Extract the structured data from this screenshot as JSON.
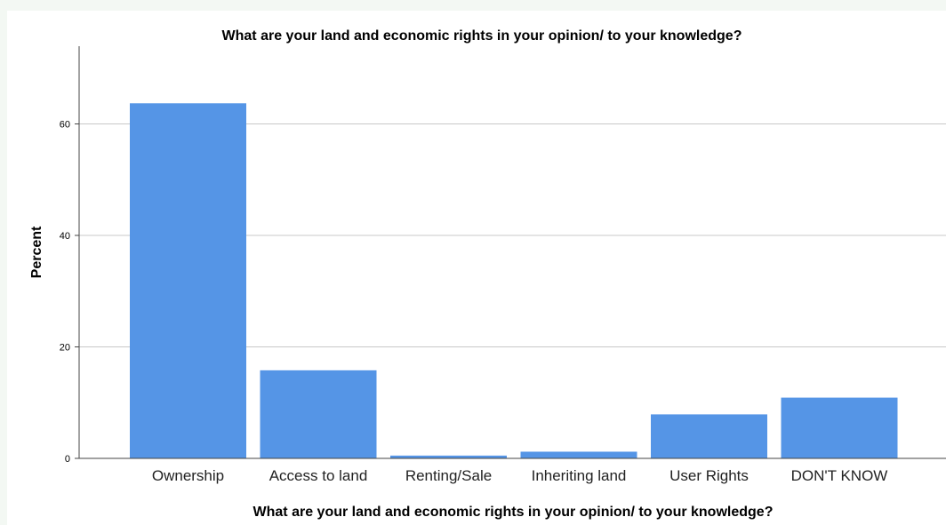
{
  "chart_data": {
    "type": "bar",
    "title": "What are your land and economic rights in your opinion/ to your knowledge?",
    "xlabel": "What are your land and economic rights in your opinion/ to your knowledge?",
    "ylabel": "Percent",
    "categories": [
      "Ownership",
      "Access to land",
      "Renting/Sale",
      "Inheriting land",
      "User Rights",
      "DON'T KNOW"
    ],
    "values": [
      63.7,
      15.8,
      0.5,
      1.2,
      7.9,
      10.9
    ],
    "ylim": [
      0,
      73
    ],
    "yticks": [
      "0",
      "20",
      "40",
      "60"
    ],
    "grid": true,
    "legend": "none",
    "colors": {
      "bar": "#5595e6",
      "grid": "#c8c8c8",
      "axis": "#444444"
    }
  }
}
